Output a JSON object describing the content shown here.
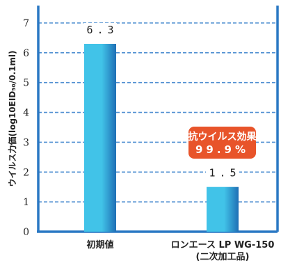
{
  "chart_data": {
    "type": "bar",
    "ylabel": "ウイルス力価(log10EID₅₀/0.1ml)",
    "ylim": [
      0,
      7
    ],
    "yticks": [
      0,
      1,
      2,
      3,
      4,
      5,
      6,
      7
    ],
    "grid": true,
    "categories": [
      {
        "lines": [
          "初期値"
        ]
      },
      {
        "lines": [
          "ロンエース LP WG-150",
          "(二次加工品)"
        ]
      }
    ],
    "values": [
      6.3,
      1.5
    ],
    "value_labels": [
      "6.3",
      "1.5"
    ],
    "annotation": {
      "lines": [
        "抗ウイルス効果",
        "99.9%"
      ],
      "color": "#e8542a"
    },
    "colors": {
      "axis": "#2a78c4",
      "grid": "#4f8fd1",
      "bar_light": "#41c3e8",
      "bar_dark": "#1f6fb5"
    }
  }
}
